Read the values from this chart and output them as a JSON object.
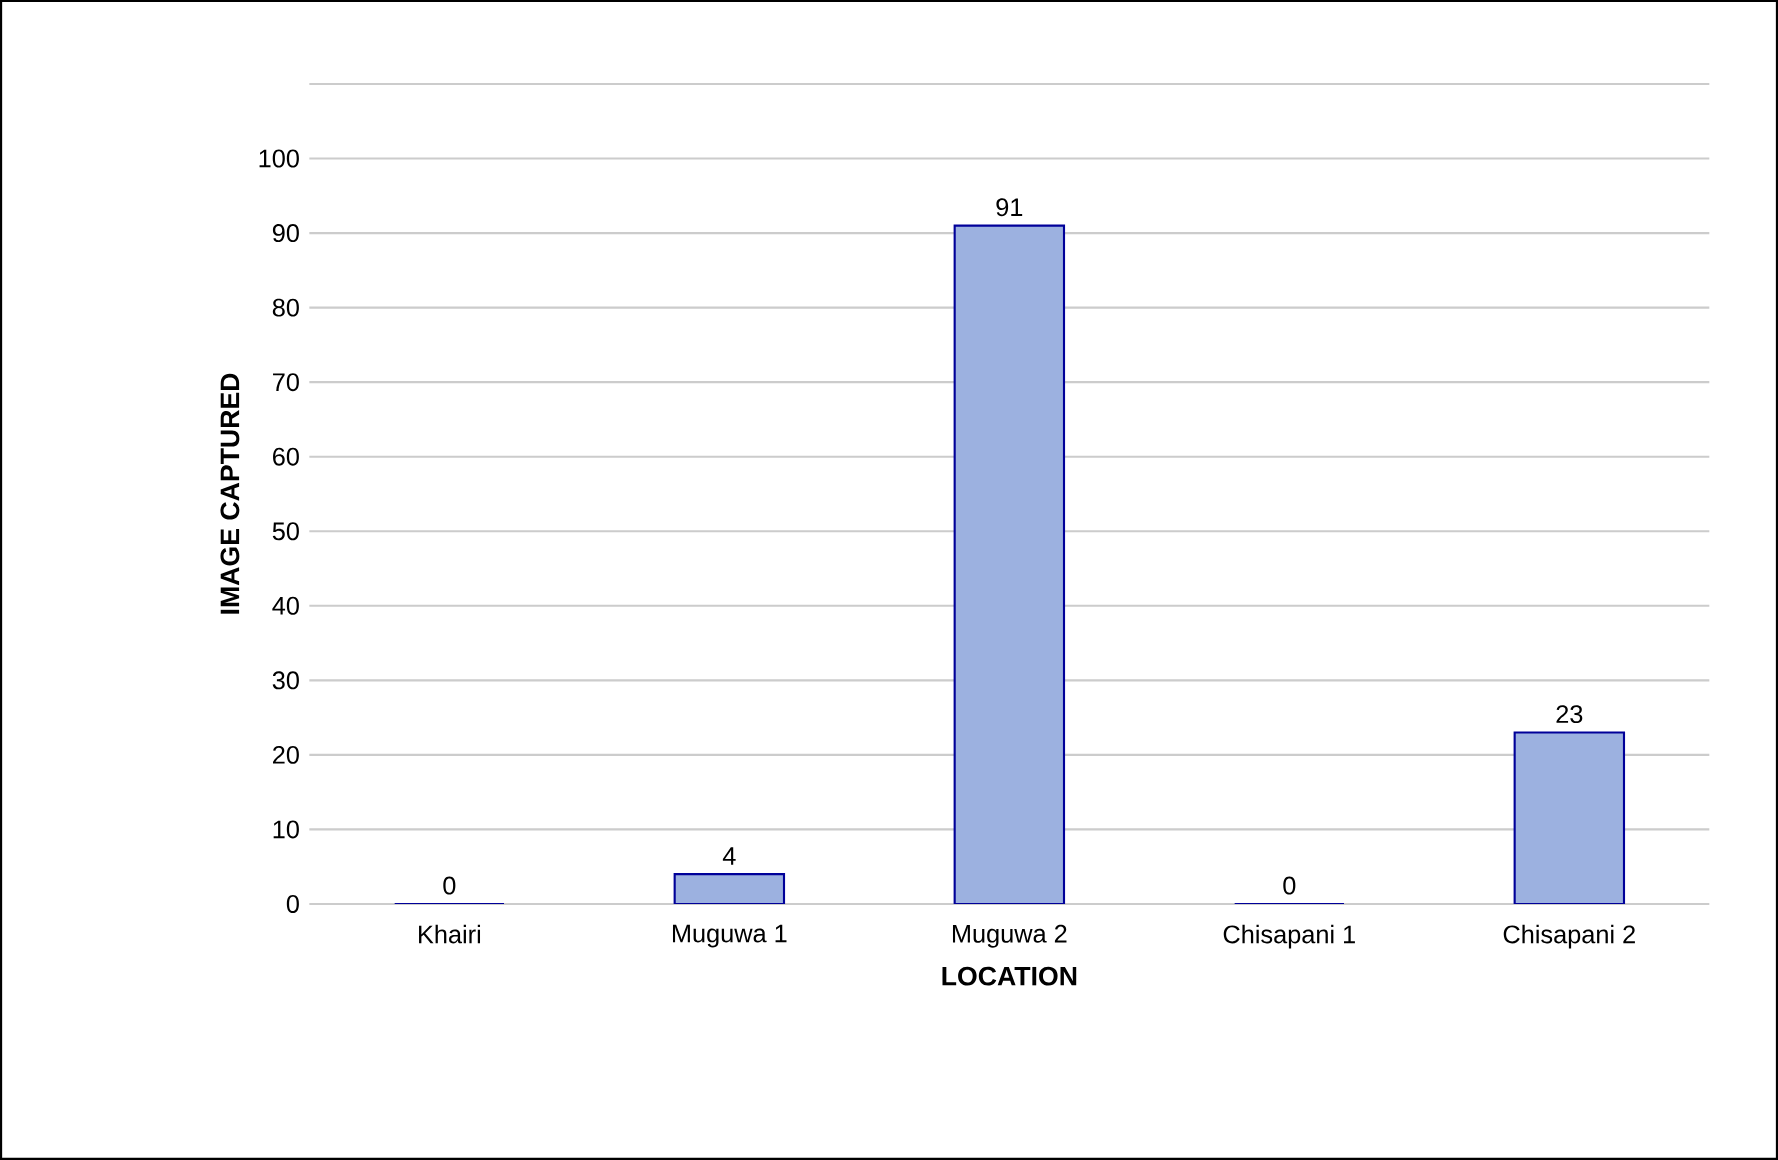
{
  "chart_data": {
    "type": "bar",
    "xlabel": "LOCATION",
    "ylabel": "IMAGE CAPTURED",
    "categories": [
      "Khairi",
      "Muguwa 1",
      "Muguwa 2",
      "Chisapani 1",
      "Chisapani 2"
    ],
    "values": [
      0,
      4,
      91,
      0,
      23
    ],
    "color": "#9cb1e0",
    "ylim": [
      0,
      110
    ],
    "yticks": [
      0,
      10,
      20,
      30,
      40,
      50,
      60,
      70,
      80,
      90,
      100,
      {
        "value": 110,
        "label": null
      }
    ],
    "grid": "y",
    "data_labels": true
  }
}
